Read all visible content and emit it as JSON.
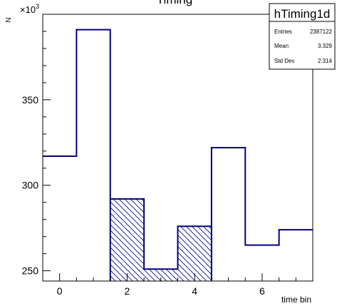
{
  "chart_data": {
    "type": "bar",
    "title": "Timing",
    "xlabel": "time bin",
    "ylabel": "N",
    "y_multiplier_label": "×10",
    "y_multiplier_exponent": "3",
    "bin_edges": [
      -0.5,
      0.5,
      1.5,
      2.5,
      3.5,
      4.5,
      5.5,
      6.5,
      7.5
    ],
    "values": [
      317,
      391,
      292,
      251,
      276,
      322,
      265,
      274
    ],
    "hatched_bins": [
      2,
      3,
      4
    ],
    "xlim": [
      -0.5,
      7.5
    ],
    "ylim": [
      244,
      400
    ],
    "x_ticks": [
      0,
      2,
      4,
      6
    ],
    "x_tick_labels": [
      "0",
      "2",
      "4",
      "6"
    ],
    "y_ticks": [
      250,
      300,
      350
    ],
    "y_tick_labels": [
      "250",
      "300",
      "350"
    ],
    "line_color": "#00007f",
    "grid": false
  },
  "stats_box": {
    "title": "hTiming1d",
    "rows": [
      {
        "label": "Entries",
        "value": "2387122"
      },
      {
        "label": "Mean",
        "value": "3.329"
      },
      {
        "label": "Std Dev",
        "value": "2.314"
      }
    ]
  }
}
